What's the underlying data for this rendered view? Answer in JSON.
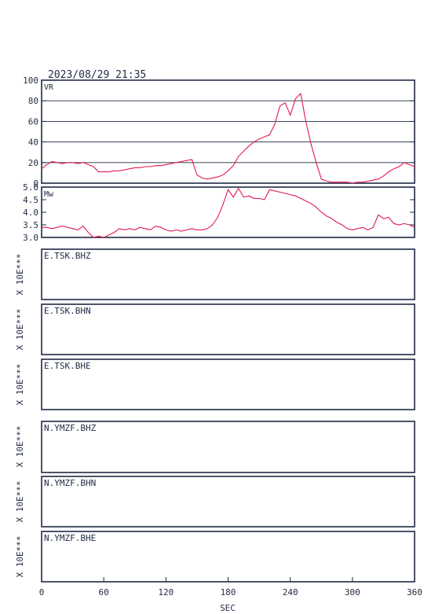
{
  "header": {
    "timestamp": "2023/08/29  21:35"
  },
  "colors": {
    "frame": "#1f2a44",
    "line": "#e0194f",
    "grid": "#1f2a44",
    "background": "#ffffff"
  },
  "chart_data": [
    {
      "type": "line",
      "title": "VR",
      "ylim": [
        0,
        100
      ],
      "yticks": [
        "100",
        "80",
        "60",
        "40",
        "20",
        "0"
      ],
      "grid": true,
      "x": [
        0,
        5,
        10,
        15,
        20,
        25,
        30,
        35,
        40,
        45,
        50,
        55,
        60,
        65,
        70,
        75,
        80,
        85,
        90,
        95,
        100,
        105,
        110,
        115,
        120,
        125,
        130,
        135,
        140,
        145,
        150,
        155,
        160,
        165,
        170,
        175,
        180,
        185,
        190,
        195,
        200,
        205,
        210,
        215,
        220,
        225,
        230,
        235,
        240,
        245,
        250,
        255,
        260,
        265,
        270,
        275,
        280,
        285,
        290,
        295,
        300,
        305,
        310,
        315,
        320,
        325,
        330,
        335,
        340,
        345,
        350,
        355,
        360
      ],
      "values": [
        14,
        18,
        21,
        20,
        19,
        20,
        20,
        19,
        20,
        18,
        16,
        11,
        11,
        11,
        12,
        12,
        13,
        14,
        15,
        15,
        16,
        16,
        17,
        17,
        18,
        19,
        20,
        21,
        22,
        23,
        8,
        5,
        4,
        5,
        6,
        8,
        12,
        17,
        26,
        31,
        36,
        40,
        43,
        45,
        47,
        57,
        75,
        78,
        66,
        82,
        87,
        60,
        38,
        20,
        4,
        2,
        1,
        1,
        1,
        1,
        0,
        1,
        1,
        2,
        3,
        4,
        7,
        11,
        14,
        16,
        20,
        18,
        16
      ]
    },
    {
      "type": "line",
      "title": "Mw",
      "ylim": [
        3.0,
        5.0
      ],
      "yticks": [
        "5.0",
        "4.5",
        "4.0",
        "3.5",
        "3.0"
      ],
      "grid": false,
      "x": [
        0,
        5,
        10,
        15,
        20,
        25,
        30,
        35,
        40,
        45,
        50,
        55,
        60,
        65,
        70,
        75,
        80,
        85,
        90,
        95,
        100,
        105,
        110,
        115,
        120,
        125,
        130,
        135,
        140,
        145,
        150,
        155,
        160,
        165,
        170,
        175,
        180,
        185,
        190,
        195,
        200,
        205,
        210,
        215,
        220,
        225,
        230,
        235,
        240,
        245,
        250,
        255,
        260,
        265,
        270,
        275,
        280,
        285,
        290,
        295,
        300,
        305,
        310,
        315,
        320,
        325,
        330,
        335,
        340,
        345,
        350,
        355,
        360
      ],
      "values": [
        3.4,
        3.4,
        3.35,
        3.4,
        3.45,
        3.4,
        3.35,
        3.3,
        3.45,
        3.2,
        3.0,
        3.05,
        3.0,
        3.1,
        3.2,
        3.35,
        3.3,
        3.35,
        3.3,
        3.4,
        3.35,
        3.3,
        3.45,
        3.4,
        3.3,
        3.25,
        3.3,
        3.25,
        3.3,
        3.35,
        3.3,
        3.3,
        3.35,
        3.5,
        3.8,
        4.3,
        4.9,
        4.6,
        4.95,
        4.6,
        4.65,
        4.55,
        4.55,
        4.5,
        4.9,
        4.85,
        4.8,
        4.75,
        4.7,
        4.65,
        4.55,
        4.45,
        4.35,
        4.2,
        4.0,
        3.85,
        3.75,
        3.6,
        3.5,
        3.35,
        3.3,
        3.35,
        3.4,
        3.3,
        3.4,
        3.9,
        3.75,
        3.8,
        3.55,
        3.5,
        3.55,
        3.5,
        3.4
      ]
    },
    {
      "type": "line",
      "title": "E.TSK.BHZ",
      "ylabel": "X 10E***"
    },
    {
      "type": "line",
      "title": "E.TSK.BHN",
      "ylabel": "X 10E***"
    },
    {
      "type": "line",
      "title": "E.TSK.BHE",
      "ylabel": "X 10E***"
    },
    {
      "type": "line",
      "title": "N.YMZF.BHZ",
      "ylabel": "X 10E***"
    },
    {
      "type": "line",
      "title": "N.YMZF.BHN",
      "ylabel": "X 10E***"
    },
    {
      "type": "line",
      "title": "N.YMZF.BHE",
      "ylabel": "X 10E***"
    }
  ],
  "xaxis": {
    "label": "SEC",
    "xlim": [
      0,
      360
    ],
    "ticks": [
      "0",
      "60",
      "120",
      "180",
      "240",
      "300",
      "360"
    ]
  }
}
